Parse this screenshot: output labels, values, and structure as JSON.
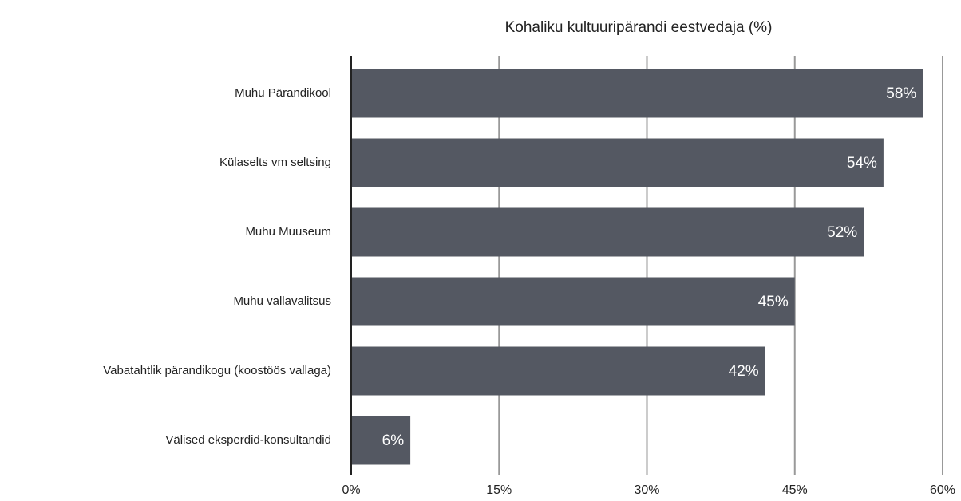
{
  "chart_data": {
    "type": "bar",
    "orientation": "horizontal",
    "title": "Kohaliku kultuuripärandi eestvedaja (%)",
    "categories": [
      "Muhu Pärandikool",
      "Külaselts vm seltsing",
      "Muhu Muuseum",
      "Muhu vallavalitsus",
      "Vabatahtlik pärandikogu (koostöös vallaga)",
      "Välised eksperdid-konsultandid"
    ],
    "values": [
      58,
      54,
      52,
      45,
      42,
      6
    ],
    "value_labels": [
      "58%",
      "54%",
      "52%",
      "45%",
      "42%",
      "6%"
    ],
    "color": "#545862",
    "xlim": [
      0,
      60
    ],
    "xticks": [
      {
        "value": 0,
        "label": "0%"
      },
      {
        "value": 15,
        "label": "15%"
      },
      {
        "value": 30,
        "label": "30%"
      },
      {
        "value": 45,
        "label": "45%"
      },
      {
        "value": 60,
        "label": "60%"
      }
    ],
    "grid": true
  }
}
